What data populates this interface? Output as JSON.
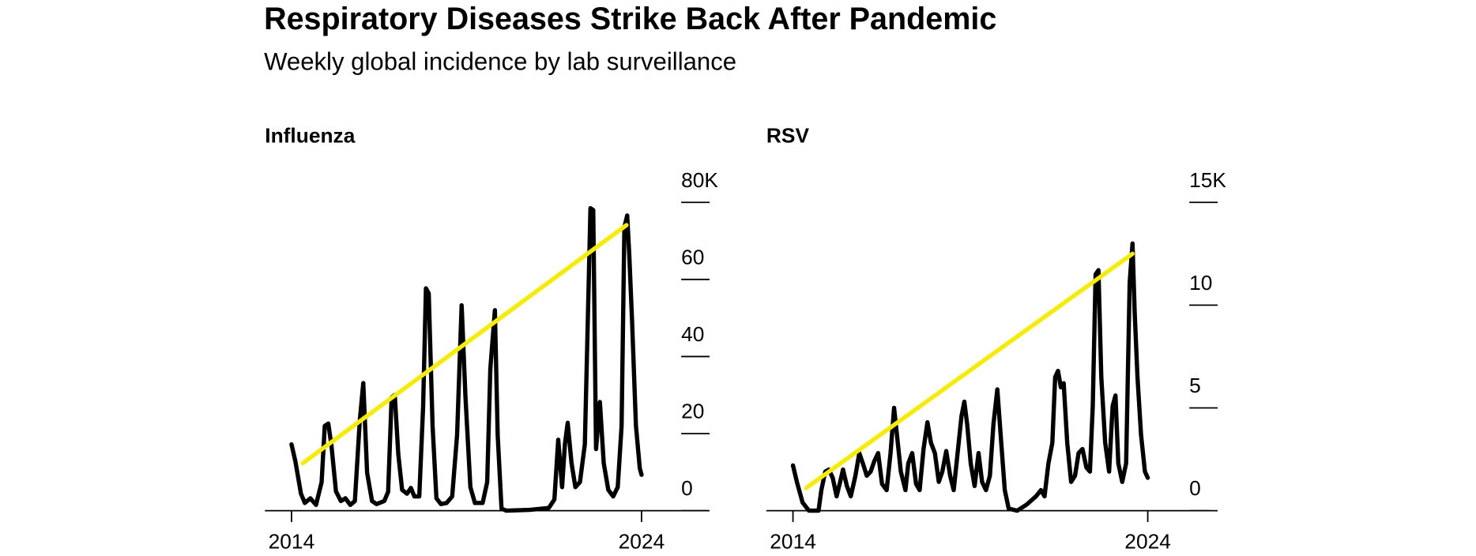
{
  "header": {
    "title": "Respiratory Diseases Strike Back After Pandemic",
    "subtitle": "Weekly global incidence by lab surveillance"
  },
  "chart_data": [
    {
      "type": "line",
      "title": "Influenza",
      "xlim": [
        2013.24,
        2025.89
      ],
      "xticks": [
        2014,
        2024
      ],
      "ylim": [
        0,
        80
      ],
      "yticks": [
        0,
        20,
        40,
        60,
        {
          "value": 80,
          "label": "80K"
        }
      ],
      "series": [
        {
          "color": "#000000",
          "x": [
            2014.0,
            2014.11,
            2014.27,
            2014.38,
            2014.54,
            2014.7,
            2014.86,
            2014.95,
            2015.05,
            2015.14,
            2015.27,
            2015.41,
            2015.54,
            2015.68,
            2015.81,
            2015.95,
            2016.05,
            2016.16,
            2016.3,
            2016.43,
            2016.65,
            2016.76,
            2016.86,
            2016.95,
            2017.05,
            2017.16,
            2017.3,
            2017.41,
            2017.51,
            2017.65,
            2017.76,
            2017.84,
            2017.92,
            2018.03,
            2018.14,
            2018.27,
            2018.43,
            2018.59,
            2018.73,
            2018.86,
            2018.97,
            2019.11,
            2019.24,
            2019.46,
            2019.59,
            2019.68,
            2019.81,
            2019.89,
            2020.0,
            2020.14,
            2020.81,
            2021.35,
            2021.51,
            2021.62,
            2021.73,
            2021.81,
            2021.89,
            2022.0,
            2022.11,
            2022.24,
            2022.38,
            2022.49,
            2022.54,
            2022.62,
            2022.7,
            2022.81,
            2022.92,
            2023.05,
            2023.19,
            2023.32,
            2023.43,
            2023.51,
            2023.59,
            2023.65,
            2023.73,
            2023.84,
            2023.95,
            2024.0
          ],
          "values": [
            17.2,
            12.8,
            4.4,
            2,
            3.2,
            1.5,
            7.4,
            22,
            22.6,
            17,
            5,
            2.5,
            3.2,
            1.5,
            2.5,
            23.3,
            33.1,
            9.8,
            2.5,
            1.7,
            2.5,
            4.9,
            29.4,
            30,
            14.7,
            5.4,
            4.4,
            5.9,
            3.7,
            3.7,
            27,
            57.7,
            56.4,
            22,
            3.2,
            1.7,
            2,
            3.7,
            19.6,
            53.3,
            29.4,
            6.1,
            2,
            2,
            7.4,
            36.8,
            52,
            19.6,
            0.5,
            0,
            0.2,
            0.7,
            2.9,
            18.4,
            6.1,
            17.2,
            22.8,
            12.3,
            6.1,
            7.4,
            17.2,
            58.9,
            78.5,
            78,
            16,
            28.2,
            12.3,
            5.4,
            3.7,
            6.1,
            22,
            73.6,
            76.6,
            66.3,
            49,
            22,
            11,
            9.3
          ]
        },
        {
          "color": "#f5ec00",
          "x": [
            2014.32,
            2023.57
          ],
          "values": [
            12.3,
            74.1
          ]
        }
      ]
    },
    {
      "type": "line",
      "title": "RSV",
      "xlim": [
        2013.25,
        2025.73
      ],
      "xticks": [
        2014,
        2024
      ],
      "ylim": [
        0,
        15
      ],
      "yticks": [
        0,
        5,
        10,
        {
          "value": 15,
          "label": "15K"
        }
      ],
      "series": [
        {
          "color": "#000000",
          "x": [
            2014.0,
            2014.11,
            2014.27,
            2014.45,
            2014.72,
            2014.8,
            2014.91,
            2015.01,
            2015.12,
            2015.23,
            2015.33,
            2015.41,
            2015.52,
            2015.63,
            2015.76,
            2015.87,
            2015.97,
            2016.08,
            2016.19,
            2016.29,
            2016.4,
            2016.51,
            2016.64,
            2016.75,
            2016.85,
            2016.93,
            2017.04,
            2017.17,
            2017.25,
            2017.36,
            2017.47,
            2017.57,
            2017.68,
            2017.79,
            2017.89,
            2018.0,
            2018.11,
            2018.21,
            2018.32,
            2018.43,
            2018.53,
            2018.64,
            2018.75,
            2018.83,
            2018.91,
            2019.01,
            2019.12,
            2019.23,
            2019.33,
            2019.44,
            2019.55,
            2019.65,
            2019.76,
            2019.87,
            2019.97,
            2020.08,
            2020.32,
            2020.59,
            2020.85,
            2020.99,
            2021.09,
            2021.2,
            2021.31,
            2021.39,
            2021.47,
            2021.55,
            2021.63,
            2021.73,
            2021.84,
            2021.95,
            2022.05,
            2022.16,
            2022.27,
            2022.37,
            2022.45,
            2022.53,
            2022.61,
            2022.69,
            2022.8,
            2022.91,
            2023.01,
            2023.09,
            2023.17,
            2023.28,
            2023.39,
            2023.49,
            2023.57,
            2023.63,
            2023.71,
            2023.81,
            2023.92,
            2024.0
          ],
          "values": [
            2.2,
            1.4,
            0.4,
            0,
            0,
            1,
            1.9,
            2,
            1.6,
            0.7,
            1.4,
            2,
            1.2,
            0.7,
            1.7,
            2.8,
            2.3,
            1.7,
            1.9,
            2.4,
            2.8,
            1.3,
            1,
            2.8,
            5,
            3.7,
            1.9,
            1,
            2.3,
            2.8,
            1.3,
            1,
            3,
            4.3,
            3.3,
            2.8,
            1.4,
            1.9,
            2.9,
            1.7,
            1,
            2.8,
            4.6,
            5.3,
            4.2,
            2.3,
            1.2,
            2.8,
            1.4,
            1,
            1.7,
            4.2,
            5.9,
            3.3,
            1,
            0.1,
            0,
            0.3,
            0.7,
            1,
            0.7,
            2.3,
            3.3,
            6.5,
            6.8,
            6,
            6.2,
            3.3,
            1.4,
            1.7,
            2.8,
            3,
            2.1,
            1.9,
            5.1,
            11.5,
            11.7,
            6.5,
            3.3,
            1.9,
            5.1,
            5.6,
            2.3,
            1.4,
            2.3,
            11.1,
            13,
            9.7,
            6.5,
            3.7,
            1.9,
            1.6
          ]
        },
        {
          "color": "#f5ec00",
          "x": [
            2014.37,
            2023.57
          ],
          "values": [
            1.1,
            12.5
          ]
        }
      ]
    }
  ]
}
